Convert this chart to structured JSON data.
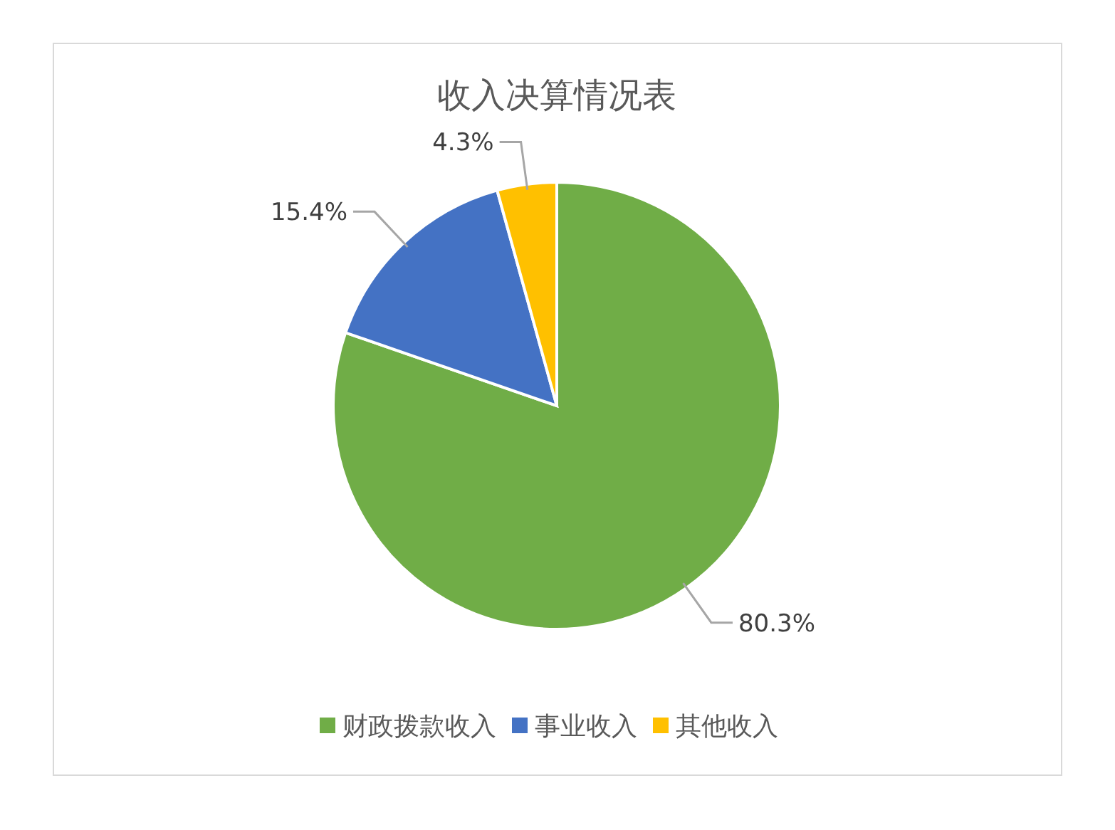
{
  "chart_data": {
    "type": "pie",
    "title": "收入决算情况表",
    "categories": [
      "财政拨款收入",
      "事业收入",
      "其他收入"
    ],
    "values": [
      80.3,
      15.4,
      4.3
    ],
    "colors": [
      "#70ad47",
      "#4472c4",
      "#ffc000"
    ],
    "value_labels": [
      "80.3%",
      "15.4%",
      "4.3%"
    ],
    "legend": "bottom"
  }
}
